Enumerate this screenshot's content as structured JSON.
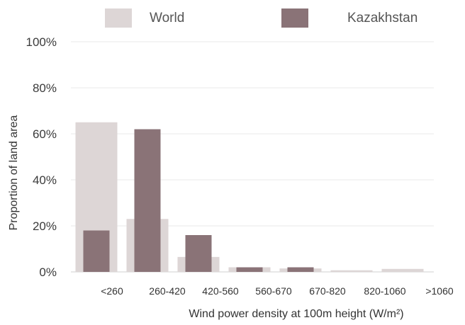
{
  "chart_data": {
    "type": "bar",
    "categories": [
      "<260",
      "260-420",
      "420-560",
      "560-670",
      "670-820",
      "820-1060",
      ">1060"
    ],
    "series": [
      {
        "name": "World",
        "values": [
          65,
          23,
          6.5,
          2,
          1.5,
          0.7,
          1.3
        ],
        "color": "#ddd6d6"
      },
      {
        "name": "Kazakhstan",
        "values": [
          18,
          62,
          16,
          2,
          2,
          0,
          0
        ],
        "color": "#8a7377"
      }
    ],
    "xlabel": "Wind power density at 100m height (W/m²)",
    "ylabel": "Proportion of land area",
    "ylim": [
      0,
      100
    ],
    "yticks": [
      "0%",
      "20%",
      "40%",
      "60%",
      "80%",
      "100%"
    ],
    "grid": true,
    "legend": "top"
  }
}
